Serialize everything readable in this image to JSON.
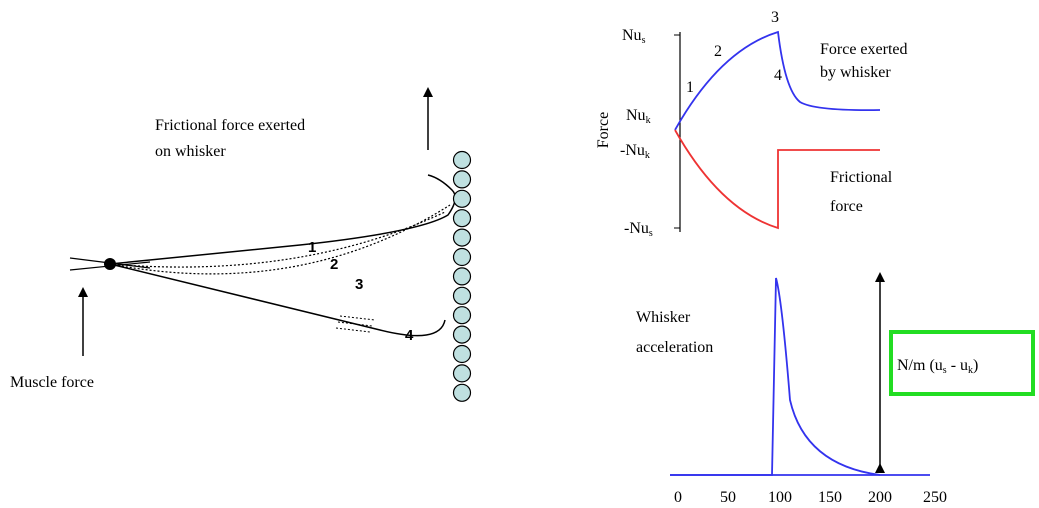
{
  "whisker": {
    "friction_label": [
      "Frictional force exerted",
      "on whisker"
    ],
    "muscle_label": "Muscle force",
    "positions": [
      "1",
      "2",
      "3",
      "4"
    ]
  },
  "force_plot": {
    "y_label": "Force",
    "y_ticks": [
      {
        "main": "Nu",
        "sub": "s"
      },
      {
        "main": "Nu",
        "sub": "k"
      },
      {
        "main": "-Nu",
        "sub": "k"
      },
      {
        "main": "-Nu",
        "sub": "s"
      }
    ],
    "points": [
      "1",
      "2",
      "3",
      "4"
    ],
    "whisker_force_label": [
      "Force exerted",
      "by whisker"
    ],
    "friction_label": [
      "Frictional",
      "force"
    ]
  },
  "acceleration_plot": {
    "label": [
      "Whisker",
      "acceleration"
    ],
    "formula": [
      "N/m (u",
      "s",
      " - u",
      "k",
      ")"
    ],
    "x_ticks": [
      "0",
      "50",
      "100",
      "150",
      "200",
      "250"
    ]
  }
}
